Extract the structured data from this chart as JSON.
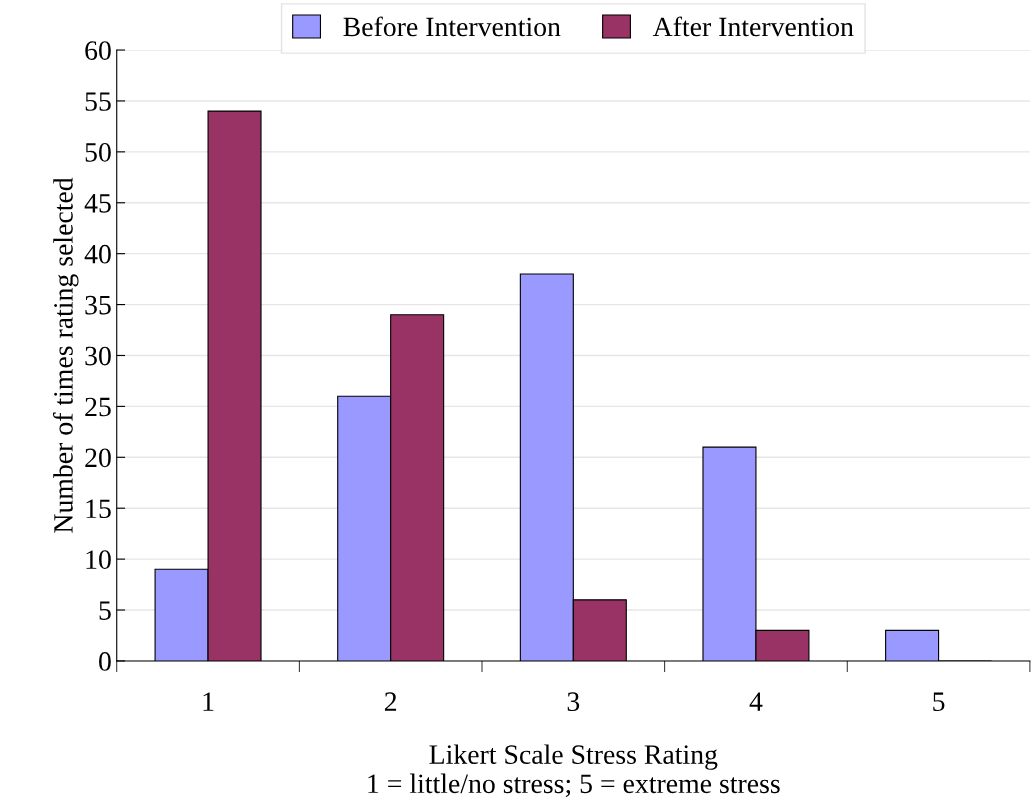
{
  "chart_data": {
    "type": "bar",
    "categories": [
      "1",
      "2",
      "3",
      "4",
      "5"
    ],
    "series": [
      {
        "name": "Before Intervention",
        "color": "#9999ff",
        "values": [
          9,
          26,
          38,
          21,
          3
        ]
      },
      {
        "name": "After Intervention",
        "color": "#993366",
        "values": [
          54,
          34,
          6,
          3,
          0
        ]
      }
    ],
    "xlabel": "Likert Scale Stress Rating\n1 = little/no stress; 5 = extreme stress",
    "ylabel": "Number of times rating selected",
    "ylim": [
      0,
      60
    ],
    "yticks": [
      0,
      5,
      10,
      15,
      20,
      25,
      30,
      35,
      40,
      45,
      50,
      55,
      60
    ],
    "grid": "y",
    "legend": "top"
  }
}
